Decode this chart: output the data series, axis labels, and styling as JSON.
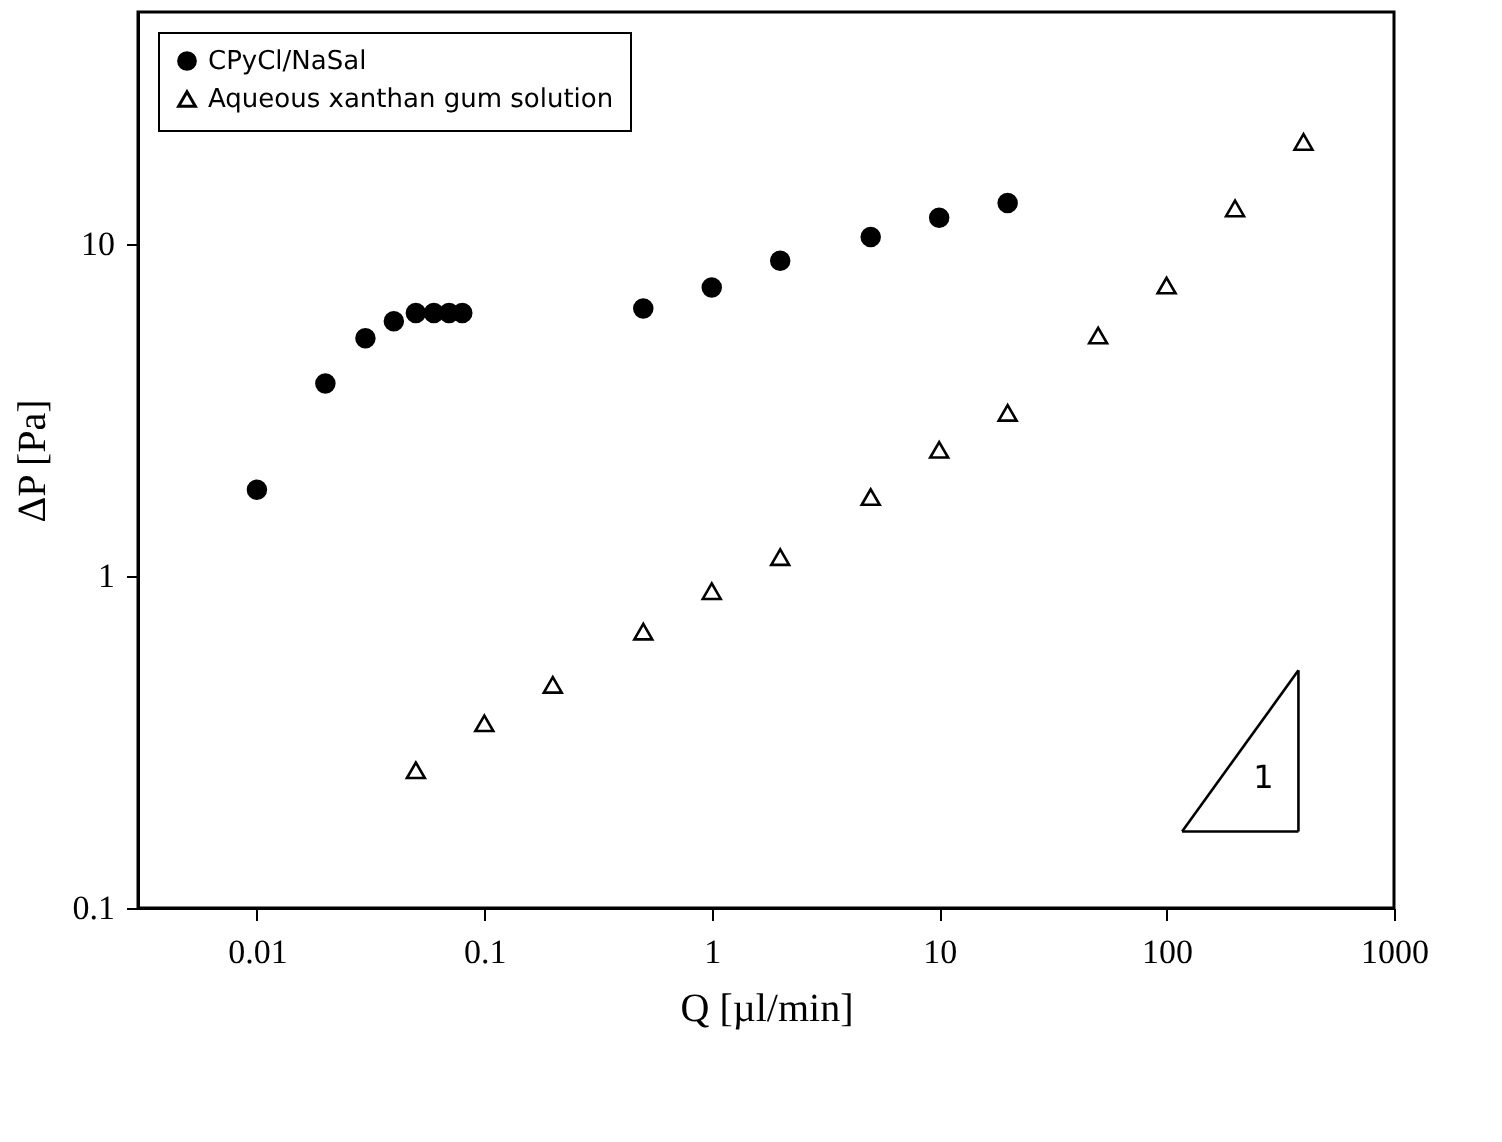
{
  "chart_data": {
    "type": "scatter",
    "xlabel": "Q [µl/min]",
    "ylabel": "ΔP [Pa]",
    "log": "xy",
    "xlim": [
      0.003,
      1000
    ],
    "ylim": [
      0.1,
      50
    ],
    "xticks": [
      0.01,
      0.1,
      1,
      10,
      100,
      1000
    ],
    "yticks": [
      0.1,
      1,
      10
    ],
    "legend": "top left",
    "grid": false,
    "series": [
      {
        "name": "CPyCl/NaSal",
        "color": "#000000",
        "marker": "circle",
        "x": [
          0.01,
          0.02,
          0.03,
          0.04,
          0.05,
          0.06,
          0.07,
          0.08,
          0.5,
          1,
          2,
          5,
          10,
          20
        ],
        "values": [
          1.82,
          3.8,
          5.2,
          5.85,
          6.2,
          6.2,
          6.2,
          6.2,
          6.4,
          7.4,
          8.9,
          10.5,
          12.0,
          13.3
        ]
      },
      {
        "name": "Aqueous xanthan gum solution",
        "color": "#000000",
        "marker": "triangle",
        "x": [
          0.05,
          0.1,
          0.2,
          0.5,
          1,
          2,
          5,
          10,
          20,
          50,
          100,
          200,
          400
        ],
        "values": [
          0.26,
          0.36,
          0.47,
          0.68,
          0.9,
          1.14,
          1.73,
          2.4,
          3.1,
          5.3,
          7.5,
          12.8,
          20.3
        ]
      },
      {
        "type": "line",
        "color": "#000000",
        "x": [
          117,
          380
        ],
        "values": [
          0.17,
          0.17
        ]
      },
      {
        "type": "line",
        "color": "#000000",
        "x": [
          380,
          380
        ],
        "values": [
          0.17,
          0.52
        ]
      },
      {
        "type": "line",
        "color": "#000000",
        "x": [
          117,
          380
        ],
        "values": [
          0.17,
          0.52
        ]
      }
    ],
    "annotations": [
      "1"
    ]
  }
}
